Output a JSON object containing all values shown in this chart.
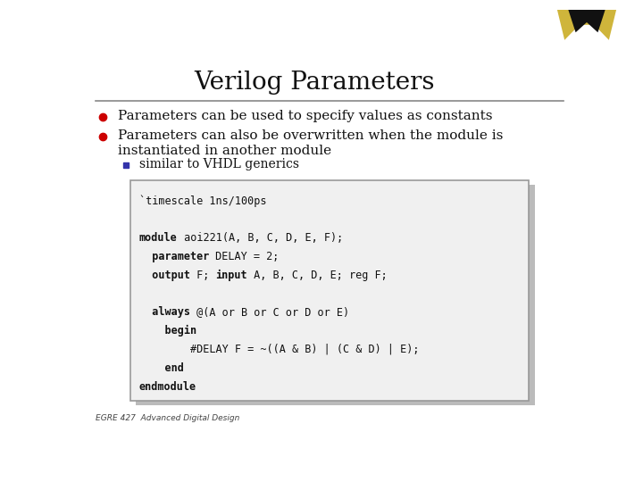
{
  "title": "Verilog Parameters",
  "title_fontsize": 20,
  "bg_color": "#ffffff",
  "title_underline_color": "#888888",
  "bullet_color": "#cc0000",
  "sub_bullet_color": "#3333aa",
  "bullet1": "Parameters can be used to specify values as constants",
  "bullet2_line1": "Parameters can also be overwritten when the module is",
  "bullet2_line2": "instantiated in another module",
  "sub_bullet": "similar to VHDL generics",
  "code_box_color": "#f0f0f0",
  "code_box_border": "#999999",
  "code_shadow": "#bbbbbb",
  "footer": "EGRE 427  Advanced Digital Design",
  "code_font_size": 8.5,
  "bullet_fontsize": 11,
  "sub_bullet_fontsize": 10
}
